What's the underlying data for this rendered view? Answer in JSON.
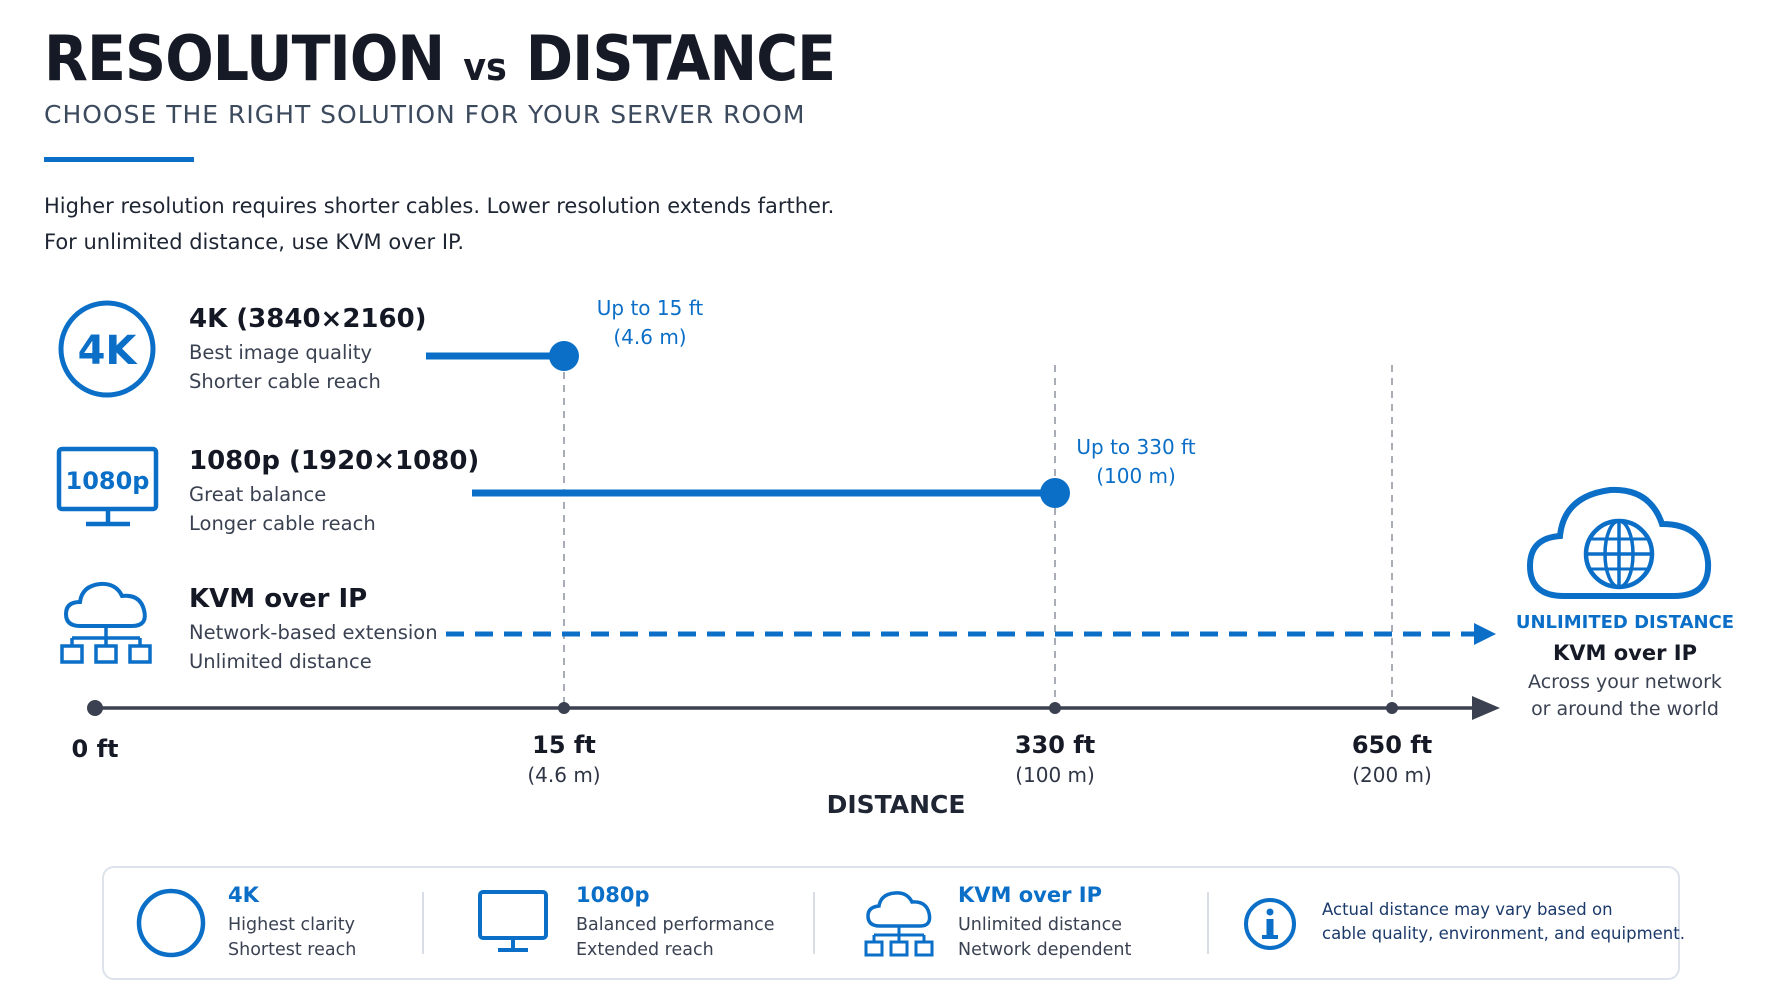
{
  "header": {
    "title_a": "RESOLUTION",
    "title_vs": "vs",
    "title_b": "DISTANCE",
    "subtitle": "CHOOSE THE RIGHT SOLUTION FOR YOUR SERVER ROOM"
  },
  "intro": {
    "line1": "Higher resolution requires shorter cables. Lower resolution extends farther.",
    "line2": "For unlimited distance, use KVM over IP."
  },
  "rows": [
    {
      "icon": "4k-badge-icon",
      "icon_text": "4K",
      "title": "4K (3840×2160)",
      "sub1": "Best image quality",
      "sub2": "Shorter cable reach"
    },
    {
      "icon": "monitor-1080p-icon",
      "icon_text": "1080p",
      "title": "1080p (1920×1080)",
      "sub1": "Great balance",
      "sub2": "Longer cable reach"
    },
    {
      "icon": "cloud-network-icon",
      "title": "KVM over IP",
      "sub1": "Network-based extension",
      "sub2": "Unlimited distance"
    }
  ],
  "callouts": {
    "k4": {
      "line1": "Up to 15 ft",
      "line2": "(4.6 m)"
    },
    "hd": {
      "line1": "Up to 330 ft",
      "line2": "(100 m)"
    }
  },
  "unlimited": {
    "icon": "cloud-globe-icon",
    "heading": "UNLIMITED DISTANCE",
    "title": "KVM over IP",
    "sub1": "Across your network",
    "sub2": "or around the world"
  },
  "chart_data": {
    "type": "bar",
    "orientation": "horizontal",
    "xlabel": "DISTANCE",
    "x_ticks": [
      {
        "value": 0,
        "label": "0 ft",
        "sublabel": ""
      },
      {
        "value": 15,
        "label": "15 ft",
        "sublabel": "(4.6 m)"
      },
      {
        "value": 330,
        "label": "330 ft",
        "sublabel": "(100 m)"
      },
      {
        "value": 650,
        "label": "650 ft",
        "sublabel": "(200 m)"
      }
    ],
    "series": [
      {
        "name": "4K (3840×2160)",
        "max_distance_ft": 15,
        "style": "solid"
      },
      {
        "name": "1080p (1920×1080)",
        "max_distance_ft": 330,
        "style": "solid"
      },
      {
        "name": "KVM over IP",
        "max_distance_ft": null,
        "unlimited": true,
        "style": "dashed-arrow"
      }
    ],
    "colors": {
      "accent": "#0b6fc8",
      "axis": "#3b4150",
      "grid": "#a9adb5"
    }
  },
  "legend": [
    {
      "icon": "circle-outline-icon",
      "title": "4K",
      "sub1": "Highest clarity",
      "sub2": "Shortest reach"
    },
    {
      "icon": "monitor-icon",
      "title": "1080p",
      "sub1": "Balanced performance",
      "sub2": "Extended reach"
    },
    {
      "icon": "cloud-network-icon",
      "title": "KVM over IP",
      "sub1": "Unlimited distance",
      "sub2": "Network dependent"
    }
  ],
  "note": {
    "icon": "info-icon",
    "line1": "Actual distance may vary based on",
    "line2": "cable quality, environment, and equipment."
  }
}
